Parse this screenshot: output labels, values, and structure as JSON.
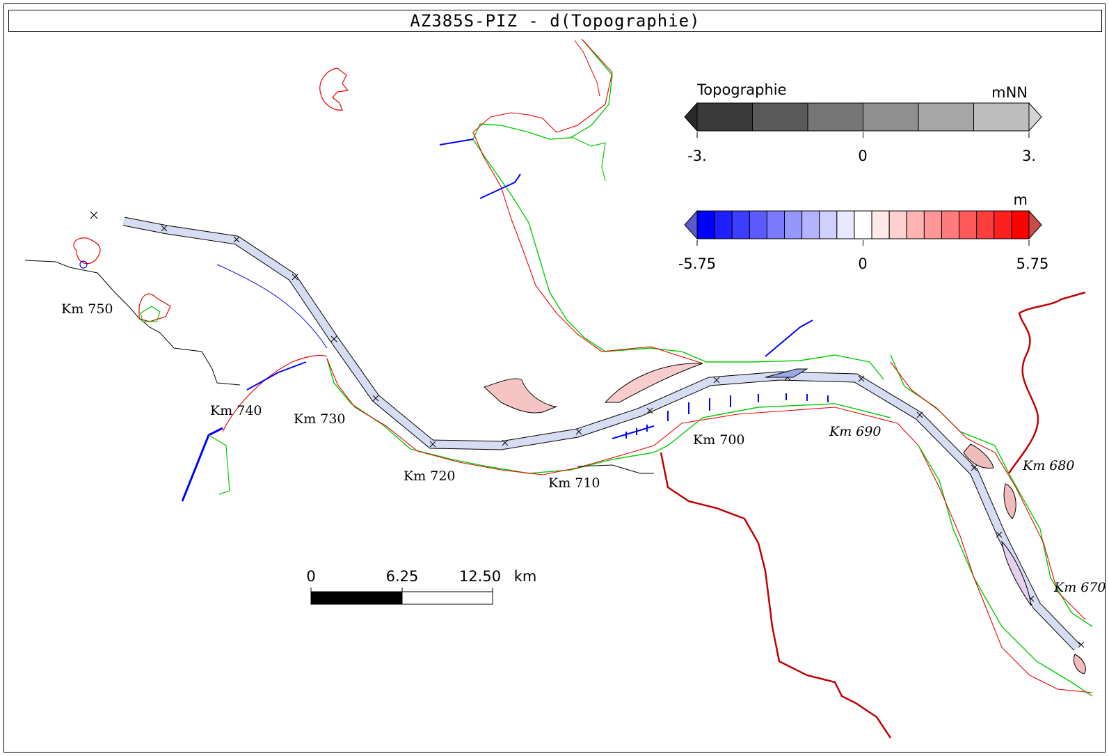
{
  "title": "AZ385S-PIZ - d(Topographie)",
  "legend_topo": {
    "title": "Topographie",
    "unit": "mNN",
    "ticks": [
      "-3.",
      "0",
      "3."
    ],
    "min": -3,
    "max": 3,
    "colors": [
      "#3a3a3a",
      "#5a5a5a",
      "#767676",
      "#8f8f8f",
      "#a6a6a6",
      "#bdbdbd"
    ],
    "under_color": "#2a2a2a",
    "over_color": "#d4d4d4"
  },
  "legend_diff": {
    "unit": "m",
    "ticks": [
      "-5.75",
      "0",
      "5.75"
    ],
    "min": -5.75,
    "max": 5.75,
    "colors": [
      "#0000ff",
      "#1f1fff",
      "#3d3dff",
      "#5a5aff",
      "#7a7aff",
      "#9696ff",
      "#b3b3ff",
      "#d0d0ff",
      "#e8e8ff",
      "#ffffff",
      "#ffe8e8",
      "#ffd0d0",
      "#ffb3b3",
      "#ff9696",
      "#ff7a7a",
      "#ff5a5a",
      "#ff3d3d",
      "#ff1f1f",
      "#ff0000"
    ],
    "under_color": "#5a5ac8",
    "over_color": "#c84a4a"
  },
  "scalebar": {
    "labels": [
      "0",
      "6.25",
      "12.50"
    ],
    "unit": "km"
  },
  "km_labels": [
    {
      "text": "Km 750",
      "style": "upright"
    },
    {
      "text": "Km 740",
      "style": "upright"
    },
    {
      "text": "Km 730",
      "style": "upright"
    },
    {
      "text": "Km 720",
      "style": "upright"
    },
    {
      "text": "Km 710",
      "style": "upright"
    },
    {
      "text": "Km 700",
      "style": "upright"
    },
    {
      "text": "Km 690",
      "style": "italic"
    },
    {
      "text": "Km 680",
      "style": "italic"
    },
    {
      "text": "Km 670",
      "style": "italic"
    }
  ]
}
